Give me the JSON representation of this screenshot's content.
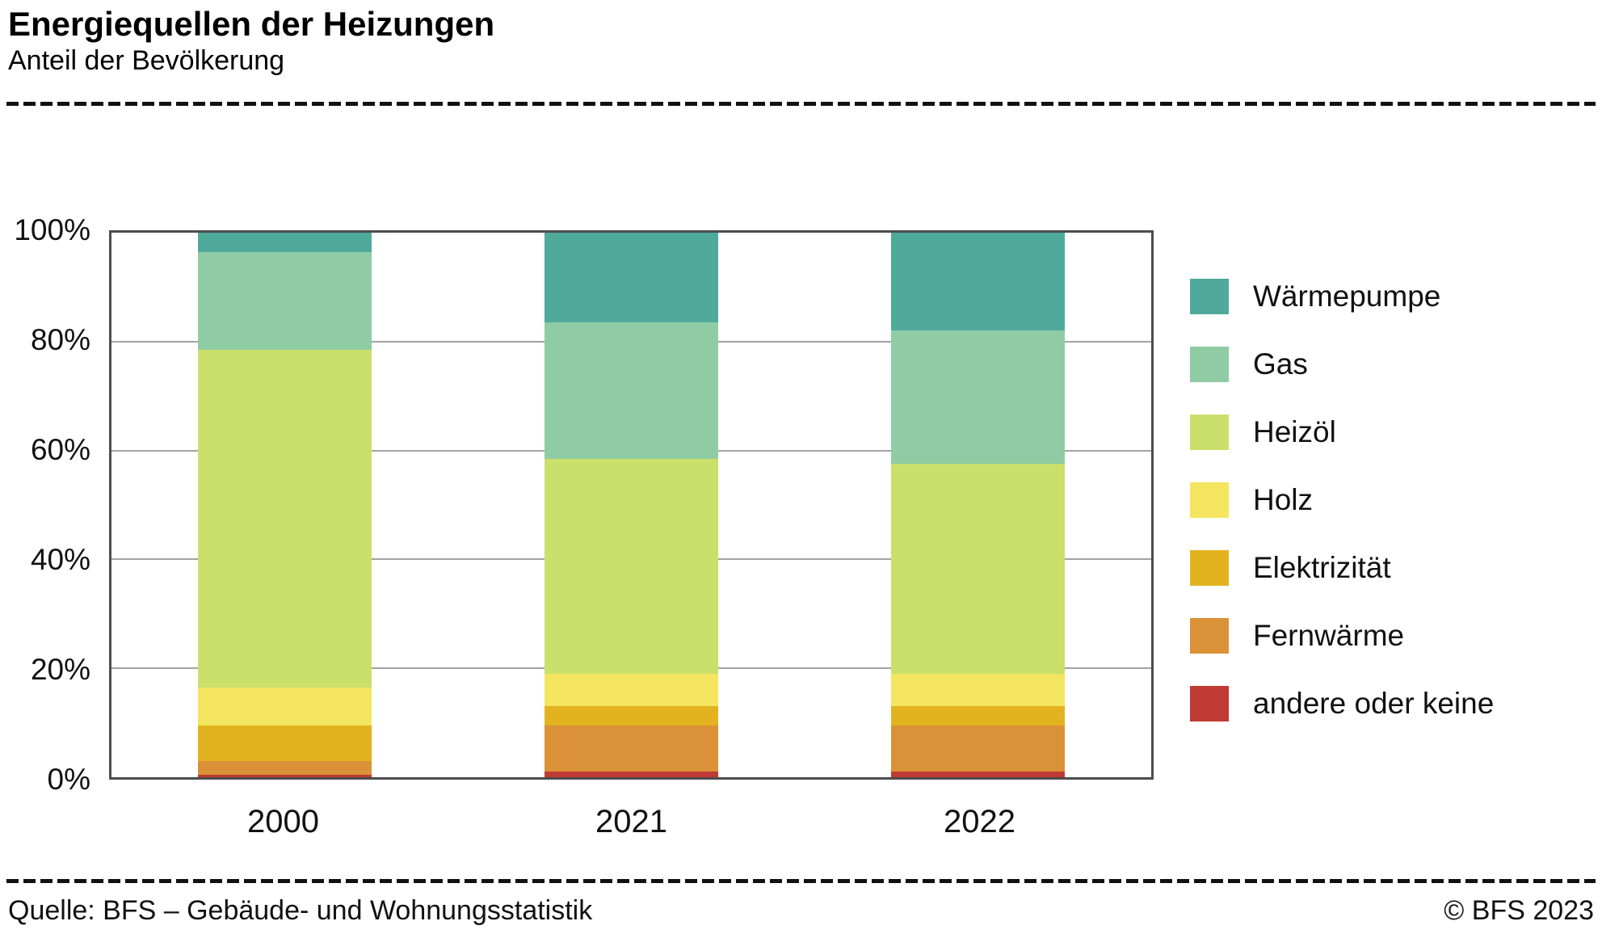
{
  "header": {
    "title": "Energiequellen der Heizungen",
    "subtitle": "Anteil der Bevölkerung"
  },
  "footer": {
    "source": "Quelle: BFS –  Gebäude- und Wohnungsstatistik",
    "copyright": "© BFS 2023"
  },
  "chart_data": {
    "type": "bar",
    "stacked": true,
    "title": "Energiequellen der Heizungen",
    "subtitle": "Anteil der Bevölkerung",
    "categories": [
      "2000",
      "2021",
      "2022"
    ],
    "series": [
      {
        "name": "Wärmepumpe",
        "color": "#4faa9b",
        "values": [
          3.5,
          16.5,
          18.0
        ]
      },
      {
        "name": "Gas",
        "color": "#8fcca3",
        "values": [
          18.0,
          25.0,
          24.5
        ]
      },
      {
        "name": "Heizöl",
        "color": "#cbdf6b",
        "values": [
          62.0,
          39.5,
          38.5
        ]
      },
      {
        "name": "Holz",
        "color": "#f3e55f",
        "values": [
          7.0,
          6.0,
          6.0
        ]
      },
      {
        "name": "Elektrizität",
        "color": "#e2b31f",
        "values": [
          6.5,
          3.5,
          3.5
        ]
      },
      {
        "name": "Fernwärme",
        "color": "#db9137",
        "values": [
          2.5,
          8.5,
          8.5
        ]
      },
      {
        "name": "andere oder keine",
        "color": "#bf3b33",
        "values": [
          0.5,
          1.0,
          1.0
        ]
      }
    ],
    "ylabel": "",
    "xlabel": "",
    "ylim": [
      0,
      100
    ],
    "yticks": [
      {
        "value": 100,
        "label": "100%"
      },
      {
        "value": 80,
        "label": "80%"
      },
      {
        "value": 60,
        "label": "60%"
      },
      {
        "value": 40,
        "label": "40%"
      },
      {
        "value": 20,
        "label": "20%"
      },
      {
        "value": 0,
        "label": "0%"
      }
    ],
    "gridline_values": [
      20,
      40,
      60,
      80
    ],
    "grid": true,
    "legend_position": "right",
    "stack_order_note": "series listed top-of-stack first; legend shown in same order"
  }
}
